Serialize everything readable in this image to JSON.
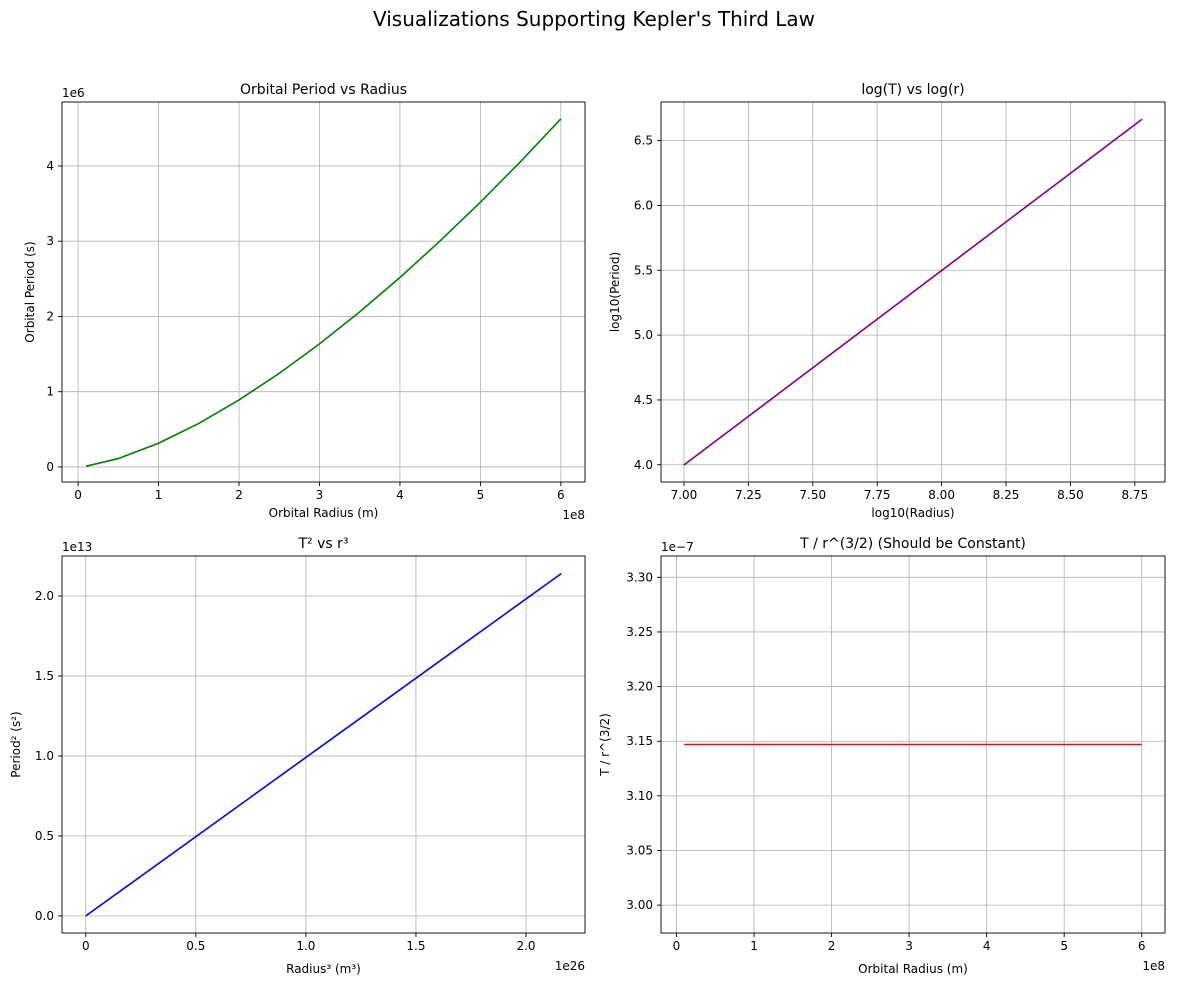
{
  "figure": {
    "suptitle": "Visualizations Supporting Kepler's Third Law"
  },
  "chart_data": [
    {
      "type": "line",
      "title": "Orbital Period vs Radius",
      "xlabel": "Orbital Radius (m)",
      "ylabel": "Orbital Period (s)",
      "x_offset_label": "1e8",
      "y_offset_label": "1e6",
      "xlim": [
        -0.2,
        6.3
      ],
      "ylim": [
        -0.2,
        4.85
      ],
      "xticks": [
        0,
        1,
        2,
        3,
        4,
        5,
        6
      ],
      "yticks": [
        0,
        1,
        2,
        3,
        4
      ],
      "x_tick_labels": [
        "0",
        "1",
        "2",
        "3",
        "4",
        "5",
        "6"
      ],
      "y_tick_labels": [
        "0",
        "1",
        "2",
        "3",
        "4"
      ],
      "grid": true,
      "series": [
        {
          "color": "#008000",
          "x": [
            0.1,
            0.5,
            1,
            1.5,
            2,
            2.5,
            3,
            3.5,
            4,
            4.5,
            5,
            5.5,
            6
          ],
          "y": [
            0.00995,
            0.1113,
            0.3147,
            0.5782,
            0.8902,
            1.244,
            1.635,
            2.061,
            2.518,
            3.005,
            3.519,
            4.059,
            4.626
          ]
        }
      ]
    },
    {
      "type": "line",
      "title": "log(T) vs log(r)",
      "xlabel": "log10(Radius)",
      "ylabel": "log10(Period)",
      "xlim": [
        6.911,
        8.867
      ],
      "ylim": [
        3.867,
        6.798
      ],
      "xticks": [
        7.0,
        7.25,
        7.5,
        7.75,
        8.0,
        8.25,
        8.5,
        8.75
      ],
      "yticks": [
        4.0,
        4.5,
        5.0,
        5.5,
        6.0,
        6.5
      ],
      "x_tick_labels": [
        "7.00",
        "7.25",
        "7.50",
        "7.75",
        "8.00",
        "8.25",
        "8.50",
        "8.75"
      ],
      "y_tick_labels": [
        "4.0",
        "4.5",
        "5.0",
        "5.5",
        "6.0",
        "6.5"
      ],
      "grid": true,
      "series": [
        {
          "color": "#800080",
          "x": [
            7.0,
            8.778
          ],
          "y": [
            3.998,
            6.665
          ]
        }
      ]
    },
    {
      "type": "line",
      "title": "T² vs r³",
      "xlabel": "Radius³ (m³)",
      "ylabel": "Period² (s²)",
      "x_offset_label": "1e26",
      "y_offset_label": "1e13",
      "xlim": [
        -0.108,
        2.268
      ],
      "ylim": [
        -0.107,
        2.25
      ],
      "xticks": [
        0,
        0.5,
        1.0,
        1.5,
        2.0
      ],
      "yticks": [
        0,
        0.5,
        1.0,
        1.5,
        2.0
      ],
      "x_tick_labels": [
        "0",
        "0.5",
        "1.0",
        "1.5",
        "2.0"
      ],
      "y_tick_labels": [
        "0.0",
        "0.5",
        "1.0",
        "1.5",
        "2.0"
      ],
      "grid": true,
      "series": [
        {
          "color": "#0000ff",
          "x": [
            0,
            2.16
          ],
          "y": [
            0,
            2.14
          ]
        }
      ]
    },
    {
      "type": "line",
      "title": "T / r^(3/2) (Should be Constant)",
      "xlabel": "Orbital Radius (m)",
      "ylabel": "T / r^(3/2)",
      "x_offset_label": "1e8",
      "y_offset_label": "1e−7",
      "xlim": [
        -0.2,
        6.3
      ],
      "ylim": [
        2.9745,
        3.3195
      ],
      "xticks": [
        0,
        1,
        2,
        3,
        4,
        5,
        6
      ],
      "yticks": [
        3.0,
        3.05,
        3.1,
        3.15,
        3.2,
        3.25,
        3.3
      ],
      "x_tick_labels": [
        "0",
        "1",
        "2",
        "3",
        "4",
        "5",
        "6"
      ],
      "y_tick_labels": [
        "3.00",
        "3.05",
        "3.10",
        "3.15",
        "3.20",
        "3.25",
        "3.30"
      ],
      "grid": true,
      "series": [
        {
          "color": "#ff0000",
          "x": [
            0.1,
            6
          ],
          "y": [
            3.147,
            3.147
          ]
        }
      ]
    }
  ]
}
